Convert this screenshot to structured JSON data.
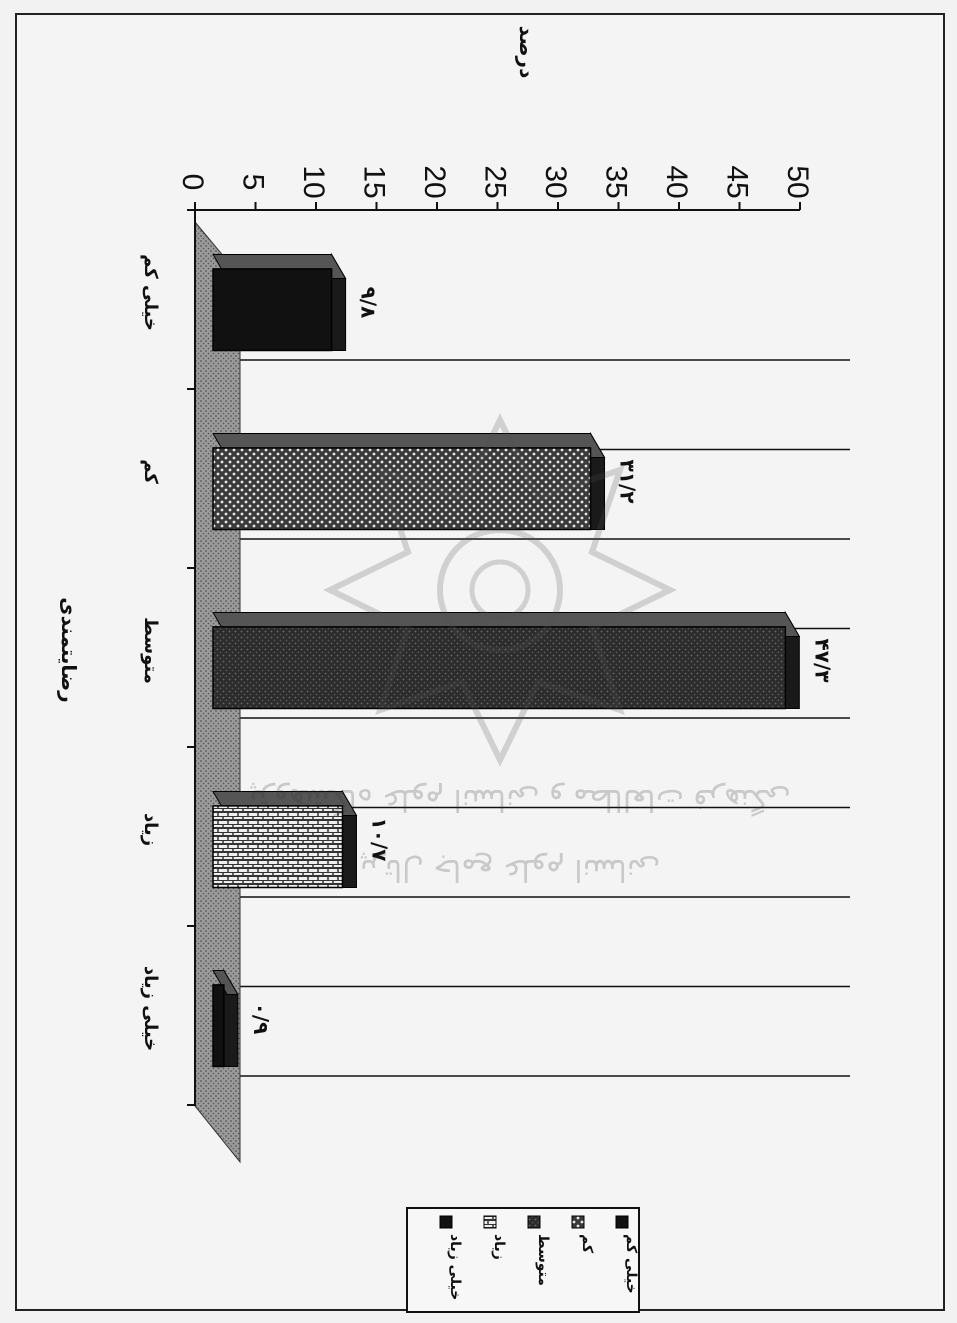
{
  "chart_data": {
    "type": "bar",
    "orientation": "rotated-90-clockwise",
    "style": "3d",
    "categories": [
      "خیلی کم",
      "کم",
      "متوسط",
      "زیاد",
      "خیلی زیاد"
    ],
    "values": [
      9.8,
      31.2,
      47.3,
      10.7,
      0.9
    ],
    "data_labels": [
      "۹/۸",
      "۳۱/۲",
      "۴۷/۳",
      "۱۰/۷",
      "۰/۹"
    ],
    "xlabel": "رضایتمندی",
    "ylabel": "درصد",
    "ylim": [
      0,
      50
    ],
    "yticks": [
      0,
      5,
      10,
      15,
      20,
      25,
      30,
      35,
      40,
      45,
      50
    ],
    "grid": true,
    "legend": {
      "position": "bottom-left",
      "entries": [
        "خیلی کم",
        "کم",
        "متوسط",
        "زیاد",
        "خیلی زیاد"
      ]
    },
    "colors": {
      "series": [
        "#111111",
        "#4a4a4a",
        "#2e2e2e",
        "#5a5a5a",
        "#888888"
      ],
      "floor": "#8a8a8a",
      "grid": "#111111",
      "background": "#f2f2f2"
    }
  },
  "watermark": {
    "line1": "پژوهشگاه علوم انسانی و مطالعات فرهنگی",
    "line2": "پرتال جامع علوم انسانی"
  }
}
